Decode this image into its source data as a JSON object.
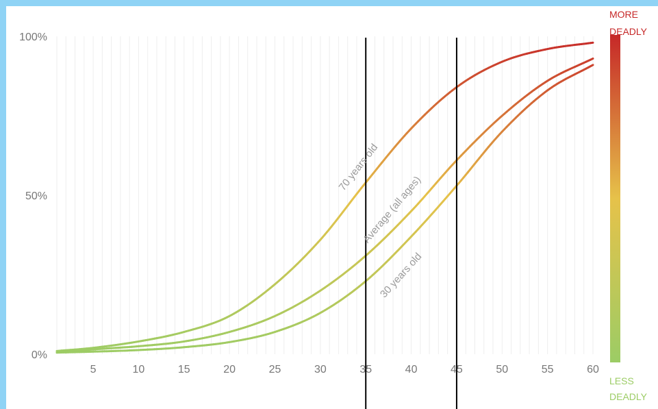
{
  "chart_data": {
    "type": "line",
    "xlim": [
      1,
      60
    ],
    "ylim": [
      0,
      100
    ],
    "x_ticks": [
      5,
      10,
      15,
      20,
      25,
      30,
      35,
      40,
      45,
      50,
      55,
      60
    ],
    "y_ticks": [
      {
        "value": 0,
        "label": "0%"
      },
      {
        "value": 50,
        "label": "50%"
      },
      {
        "value": 100,
        "label": "100%"
      }
    ],
    "vertical_gridlines": "every 1 unit",
    "reference_lines_x": [
      35,
      45
    ],
    "series": [
      {
        "name": "70 years old",
        "x": [
          1,
          5,
          10,
          15,
          20,
          25,
          30,
          35,
          40,
          45,
          50,
          55,
          60
        ],
        "y": [
          1,
          2,
          4,
          7,
          12,
          22,
          36,
          54,
          71,
          84,
          92,
          96,
          98
        ]
      },
      {
        "name": "Average (all ages)",
        "x": [
          1,
          5,
          10,
          15,
          20,
          25,
          30,
          35,
          40,
          45,
          50,
          55,
          60
        ],
        "y": [
          0.5,
          1.5,
          2.5,
          4,
          7,
          12,
          20,
          31,
          45,
          61,
          75,
          86,
          93
        ]
      },
      {
        "name": "30 years old",
        "x": [
          1,
          5,
          10,
          15,
          20,
          25,
          30,
          35,
          40,
          45,
          50,
          55,
          60
        ],
        "y": [
          0.5,
          0.8,
          1.3,
          2.2,
          3.8,
          7,
          13,
          23,
          37,
          53,
          70,
          83,
          91
        ]
      }
    ],
    "color_scale": {
      "top_label_lines": [
        "MORE",
        "DEADLY"
      ],
      "bottom_label_lines": [
        "LESS",
        "DEADLY"
      ],
      "top_color": "#c62828",
      "mid_color": "#e6c24a",
      "bottom_color": "#9ccc65"
    }
  }
}
